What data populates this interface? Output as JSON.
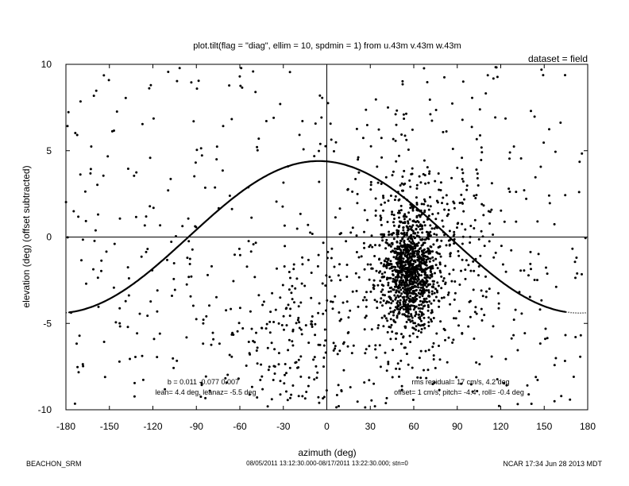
{
  "chart_data": {
    "type": "scatter",
    "title": "plot.tilt(flag = \"diag\", ellim = 10, spdmin = 1) from u.43m v.43m w.43m",
    "subtitle": "dataset = field",
    "xlabel": "azimuth (deg)",
    "ylabel": "elevation (deg)  (offset subtracted)",
    "xlim": [
      -180,
      180
    ],
    "ylim": [
      -10,
      10
    ],
    "x_ticks": [
      -180,
      -150,
      -120,
      -90,
      -60,
      -30,
      0,
      30,
      60,
      90,
      120,
      150,
      180
    ],
    "y_ticks": [
      -10,
      -5,
      0,
      5,
      10
    ],
    "grid": false,
    "fit_curve": {
      "description": "tilt fit: elevation = lean * cos(azimuth - leanaz)",
      "lean_deg": 4.4,
      "leanaz_deg": -5.5,
      "style": "solid within data range, dotted beyond"
    },
    "scatter_clusters": [
      {
        "center": [
          57,
          -2.2
        ],
        "spread": [
          9,
          1.6
        ],
        "count": 900
      },
      {
        "center": [
          65,
          -1.0
        ],
        "spread": [
          25,
          3.0
        ],
        "count": 500
      },
      {
        "center": [
          -20,
          -5.5
        ],
        "spread": [
          25,
          2.5
        ],
        "count": 160
      }
    ],
    "scatter_background_count": 500,
    "annotations": {
      "fit_coeffs": "b =  0.011 -0.077  0.007",
      "lean": "lean= 4.4 deg, leanaz= -5.5 deg",
      "rms": "rms residual= 17 cm/s, 4.2 deg",
      "offset": "offset= 1 cm/s; pitch= -4.4 ,  roll= -0.4 deg"
    }
  },
  "footer": {
    "left": "BEACHON_SRM",
    "center": "08/05/2011 13:12:30.000-08/17/2011 13:22:30.000; stn=0",
    "right": "NCAR 17:34 Jun 28 2013 MDT"
  }
}
